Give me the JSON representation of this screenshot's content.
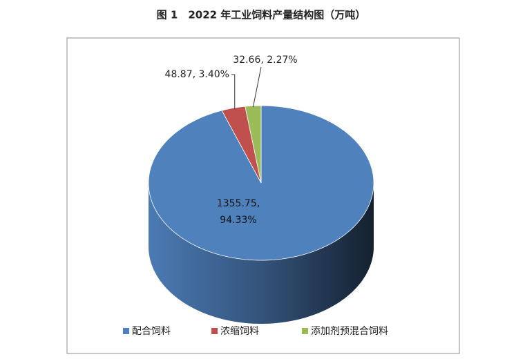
{
  "chart_data": {
    "type": "pie",
    "title": "图 1　2022 年工业饲料产量结构图（万吨）",
    "categories": [
      "配合饲料",
      "浓缩饲料",
      "添加剂预混合饲料"
    ],
    "values": [
      1355.75,
      48.87,
      32.66
    ],
    "value_labels": [
      "1355.75, 94.33%",
      "48.87, 3.40%",
      "32.66, 2.27%"
    ],
    "colors": [
      "#4f81bd",
      "#c0504d",
      "#9bbb59"
    ],
    "legend": "bottom"
  }
}
